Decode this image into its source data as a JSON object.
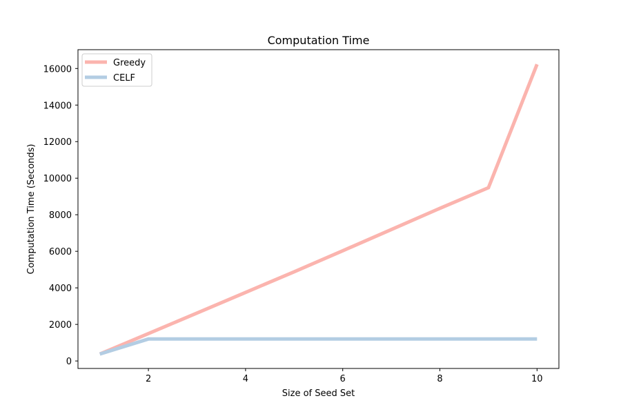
{
  "chart_data": {
    "type": "line",
    "title": "Computation Time",
    "xlabel": "Size of Seed Set",
    "ylabel": "Computation Time (Seconds)",
    "xlim": [
      0.55,
      10.45
    ],
    "ylim": [
      -410,
      17030
    ],
    "xticks": [
      2,
      4,
      6,
      8,
      10
    ],
    "yticks": [
      0,
      2000,
      4000,
      6000,
      8000,
      10000,
      12000,
      14000,
      16000
    ],
    "legend_position": "upper left",
    "grid": false,
    "x": [
      1,
      2,
      3,
      4,
      5,
      6,
      7,
      8,
      9,
      10
    ],
    "series": [
      {
        "name": "Greedy",
        "color": "#fbb4ae",
        "values": [
          380,
          1500,
          2620,
          3750,
          4880,
          6030,
          7190,
          8350,
          9480,
          16230
        ]
      },
      {
        "name": "CELF",
        "color": "#b3cde3",
        "values": [
          380,
          1200,
          1200,
          1200,
          1200,
          1200,
          1200,
          1200,
          1200,
          1200
        ]
      }
    ]
  }
}
